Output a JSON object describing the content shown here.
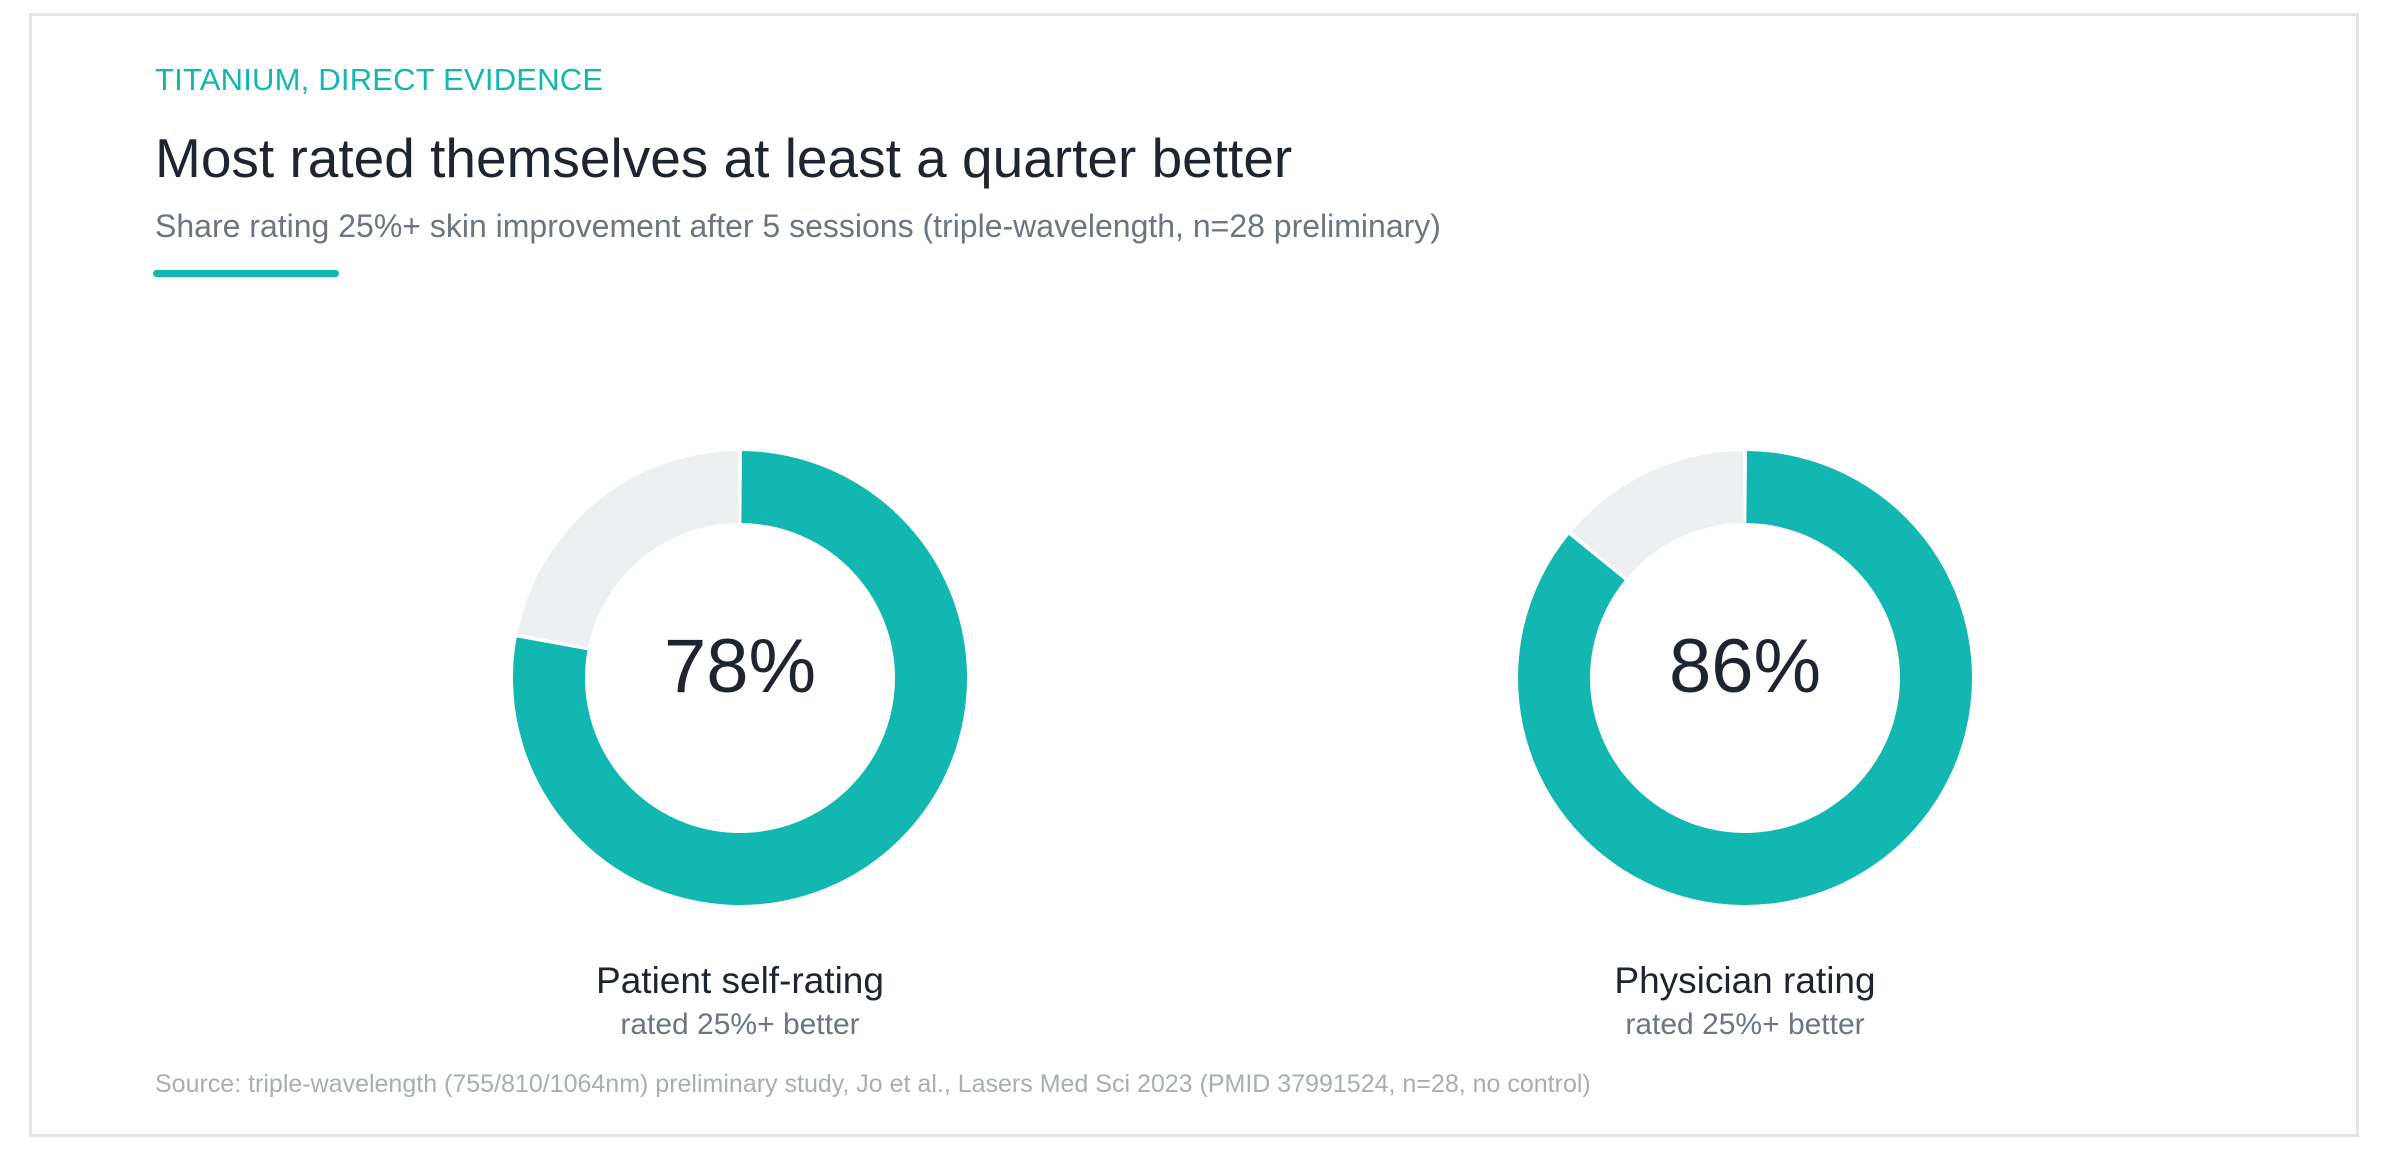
{
  "header": {
    "eyebrow": "TITANIUM, DIRECT EVIDENCE",
    "title": "Most rated themselves at least a quarter better",
    "subtitle": "Share rating 25%+ skin improvement after 5 sessions (triple-wavelength, n=28 preliminary)"
  },
  "colors": {
    "accent": "#13b7b1",
    "track": "#edf0f1",
    "text": "#1d2530",
    "muted": "#6b7680"
  },
  "chart_data": [
    {
      "type": "pie",
      "value_label": "78%",
      "label": "Patient self-rating",
      "sublabel": "rated 25%+ better",
      "slices": [
        {
          "name": "rated 25%+ better",
          "value": 78
        },
        {
          "name": "remainder",
          "value": 22
        }
      ]
    },
    {
      "type": "pie",
      "value_label": "86%",
      "label": "Physician rating",
      "sublabel": "rated 25%+ better",
      "slices": [
        {
          "name": "rated 25%+ better",
          "value": 86
        },
        {
          "name": "remainder",
          "value": 14
        }
      ]
    }
  ],
  "footer": {
    "source": "Source: triple-wavelength (755/810/1064nm) preliminary study, Jo et al., Lasers Med Sci 2023 (PMID 37991524, n=28, no control)"
  }
}
